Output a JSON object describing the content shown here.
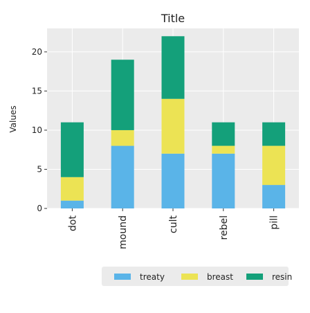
{
  "chart_data": {
    "type": "bar",
    "stacked": true,
    "title": "Title",
    "xlabel": "",
    "ylabel": "Values",
    "categories": [
      "dot",
      "mound",
      "cult",
      "rebel",
      "pill"
    ],
    "series": [
      {
        "name": "treaty",
        "color": "#5ab4e8",
        "values": [
          1,
          8,
          7,
          7,
          3
        ]
      },
      {
        "name": "breast",
        "color": "#ece354",
        "values": [
          3,
          2,
          7,
          1,
          5
        ]
      },
      {
        "name": "resin",
        "color": "#14a07a",
        "values": [
          7,
          9,
          8,
          3,
          3
        ]
      }
    ],
    "ylim": [
      0,
      23
    ],
    "yticks": [
      0,
      5,
      10,
      15,
      20
    ],
    "grid": true,
    "legend_position": "bottom",
    "background": "#ebebeb"
  }
}
